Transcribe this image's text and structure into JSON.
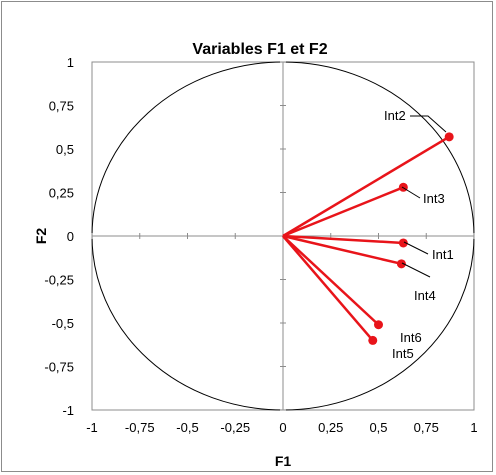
{
  "chart_data": {
    "type": "scatter",
    "title": "Variables F1 et F2",
    "xlabel": "F1",
    "ylabel": "F2",
    "xlim": [
      -1,
      1
    ],
    "ylim": [
      -1,
      1
    ],
    "x_ticks": [
      "-1",
      "-0,75",
      "-0,5",
      "-0,25",
      "0",
      "0,25",
      "0,5",
      "0,75",
      "1"
    ],
    "y_ticks": [
      "1",
      "0,75",
      "0,5",
      "0,25",
      "0",
      "-0,25",
      "-0,5",
      "-0,75",
      "-1"
    ],
    "correlation_circle": true,
    "series_color": "#e8141a",
    "variables": [
      {
        "label": "Int2",
        "x": 0.87,
        "y": 0.57
      },
      {
        "label": "Int3",
        "x": 0.63,
        "y": 0.28
      },
      {
        "label": "Int1",
        "x": 0.63,
        "y": -0.04
      },
      {
        "label": "Int4",
        "x": 0.62,
        "y": -0.16
      },
      {
        "label": "Int6",
        "x": 0.5,
        "y": -0.51
      },
      {
        "label": "Int5",
        "x": 0.47,
        "y": -0.6
      }
    ]
  }
}
